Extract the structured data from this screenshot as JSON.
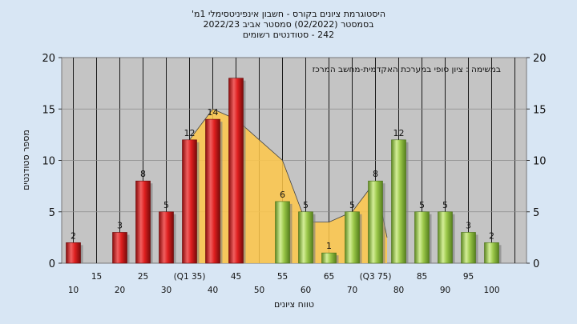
{
  "chart_data": {
    "type": "bar",
    "title_lines": [
      "היסטוגרמת ציונים בקורס - חשבון אינפיניטסימלי 1מ'",
      "בסמסטר  (02/2022)  סמסטר אביב 2022/23",
      "242 - סטודנטים רשומים"
    ],
    "annotation": "במשימה : ציון סופי במערכת האקדמית-מחשב המרכז",
    "xlabel": "טווח ציונים",
    "ylabel": "מספר סטודנטים",
    "ylim": [
      0,
      20
    ],
    "yticks": [
      0,
      5,
      10,
      15,
      20
    ],
    "x_tick_labels_top": [
      "15",
      "25",
      "(Q1 35)",
      "45",
      "55",
      "65",
      "(Q3 75)",
      "85",
      "95"
    ],
    "x_tick_labels_bottom": [
      "10",
      "20",
      "30",
      "40",
      "50",
      "60",
      "70",
      "80",
      "90",
      "100"
    ],
    "bins": [
      10,
      15,
      20,
      25,
      30,
      35,
      40,
      45,
      50,
      55,
      60,
      65,
      70,
      75,
      80,
      85,
      90,
      95,
      100
    ],
    "values": [
      2,
      0,
      3,
      8,
      5,
      12,
      14,
      18,
      0,
      6,
      5,
      1,
      5,
      8,
      12,
      5,
      5,
      3,
      2
    ],
    "bar_labels": [
      "2",
      "",
      "3",
      "8",
      "5",
      "12",
      "14",
      "",
      "",
      "6",
      "5",
      "1",
      "5",
      "8",
      "12",
      "5",
      "5",
      "3",
      "2"
    ],
    "groups": [
      "fail",
      "fail",
      "fail",
      "fail",
      "fail",
      "fail",
      "fail",
      "fail",
      "pass",
      "pass",
      "pass",
      "pass",
      "pass",
      "pass",
      "pass",
      "pass",
      "pass",
      "pass",
      "pass"
    ],
    "distribution_curve": [
      [
        35,
        12
      ],
      [
        40,
        15
      ],
      [
        45,
        14
      ],
      [
        50,
        12
      ],
      [
        55,
        10
      ],
      [
        60,
        4
      ],
      [
        65,
        4
      ],
      [
        70,
        5
      ],
      [
        75,
        8
      ],
      [
        77.5,
        2.5
      ]
    ],
    "colors": {
      "fail": "#e02020",
      "pass": "#9cc84a",
      "curve": "#ffc84a",
      "plot_bg": "#c4c4c4",
      "page_bg": "#d8e6f4"
    },
    "grid": true
  }
}
